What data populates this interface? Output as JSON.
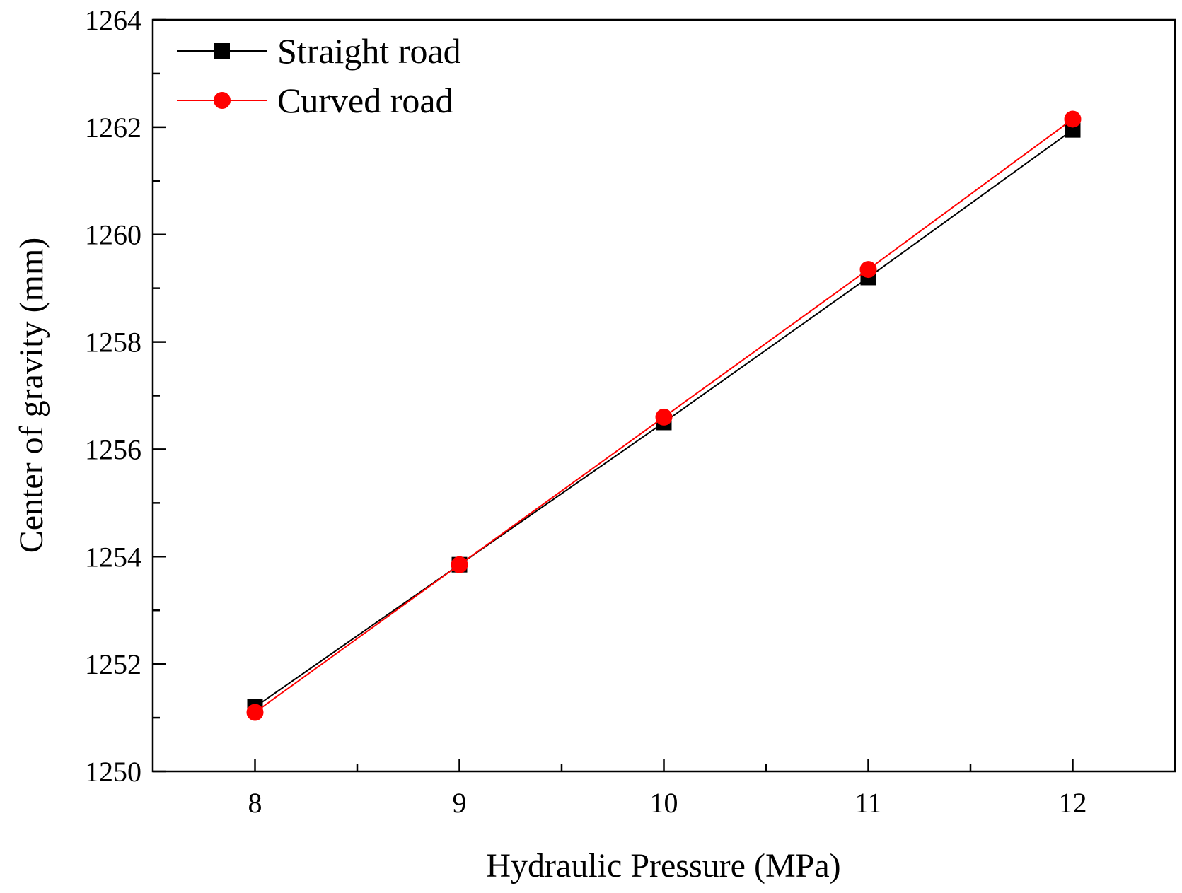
{
  "chart_data": {
    "type": "line",
    "title": "",
    "xlabel": "Hydraulic Pressure (MPa)",
    "ylabel": "Center of gravity (mm)",
    "xlim": [
      7.5,
      12.5
    ],
    "ylim": [
      1250,
      1264
    ],
    "x_major_ticks": [
      8,
      9,
      10,
      11,
      12
    ],
    "x_minor_ticks": [
      8.5,
      9.5,
      10.5,
      11.5
    ],
    "y_major_ticks": [
      1250,
      1252,
      1254,
      1256,
      1258,
      1260,
      1262,
      1264
    ],
    "y_minor_ticks": [
      1251,
      1253,
      1255,
      1257,
      1259,
      1261,
      1263
    ],
    "grid": false,
    "legend_position": "top-left",
    "x": [
      8,
      9,
      10,
      11,
      12
    ],
    "series": [
      {
        "name": "Straight road",
        "values": [
          1251.2,
          1253.85,
          1256.5,
          1259.2,
          1261.95
        ],
        "color": "#000000",
        "marker": "square"
      },
      {
        "name": "Curved road",
        "values": [
          1251.1,
          1253.85,
          1256.6,
          1259.35,
          1262.15
        ],
        "color": "#ff0000",
        "marker": "circle"
      }
    ]
  }
}
